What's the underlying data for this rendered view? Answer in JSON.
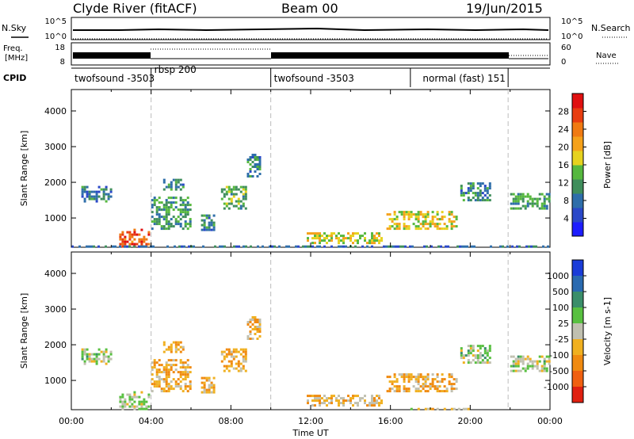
{
  "header": {
    "station": "Clyde River (fitACF)",
    "beam": "Beam 00",
    "date": "19/Jun/2015"
  },
  "top_panels": {
    "nsky_label": "N.Sky",
    "nsky_ticks": [
      "10^5",
      "10^0"
    ],
    "nsearch_label": "N.Search",
    "nsearch_ticks": [
      "10^5",
      "10^0"
    ],
    "freq_label_1": "Freq.",
    "freq_label_2": "[MHz]",
    "freq_ticks": [
      "18",
      "8"
    ],
    "nave_label": "Nave",
    "nave_ticks": [
      "60",
      "0"
    ],
    "cpid_label": "CPID",
    "cpid_segments": [
      {
        "label": "twofsound -3503",
        "start_hour": 0,
        "end_hour": 4.0
      },
      {
        "label": "rbsp 200",
        "start_hour": 4.0,
        "end_hour": 10.0
      },
      {
        "label": "twofsound -3503",
        "start_hour": 10.0,
        "end_hour": 17.0
      },
      {
        "label": "normal (fast) 151",
        "start_hour": 17.0,
        "end_hour": 21.9
      }
    ]
  },
  "chart_data": [
    {
      "type": "heatmap",
      "title": "Power",
      "ylabel": "Slant Range [km]",
      "xlabel": "",
      "ylim": [
        180,
        4600
      ],
      "xlim": [
        0,
        24
      ],
      "yticks": [
        "1000",
        "2000",
        "3000",
        "4000"
      ],
      "colorbar_label": "Power [dB]",
      "colorbar_ticks": [
        "4",
        "8",
        "12",
        "16",
        "20",
        "24",
        "28"
      ],
      "colorbar_colors": [
        "#1d1dff",
        "#2a48c8",
        "#2e6eaa",
        "#3f8e5c",
        "#56b83e",
        "#e6d21e",
        "#f5a11a",
        "#f07a12",
        "#e83d10",
        "#e01010"
      ],
      "blobs": [
        {
          "x0": 2.4,
          "x1": 3.9,
          "y0": 200,
          "y1": 700,
          "v": 0.85
        },
        {
          "x0": 4.0,
          "x1": 6.0,
          "y0": 700,
          "y1": 1600,
          "v": 0.35
        },
        {
          "x0": 4.6,
          "x1": 5.6,
          "y0": 1800,
          "y1": 2100,
          "v": 0.3
        },
        {
          "x0": 6.5,
          "x1": 7.2,
          "y0": 700,
          "y1": 1100,
          "v": 0.3
        },
        {
          "x0": 7.5,
          "x1": 8.8,
          "y0": 1300,
          "y1": 1900,
          "v": 0.4
        },
        {
          "x0": 8.8,
          "x1": 9.4,
          "y0": 2200,
          "y1": 2800,
          "v": 0.3
        },
        {
          "x0": 11.8,
          "x1": 15.5,
          "y0": 300,
          "y1": 600,
          "v": 0.55
        },
        {
          "x0": 15.8,
          "x1": 19.3,
          "y0": 700,
          "y1": 1200,
          "v": 0.55
        },
        {
          "x0": 22.0,
          "x1": 24.0,
          "y0": 1300,
          "y1": 1700,
          "v": 0.35
        },
        {
          "x0": 19.5,
          "x1": 21.0,
          "y0": 1500,
          "y1": 2000,
          "v": 0.3
        },
        {
          "x0": 0.5,
          "x1": 2.0,
          "y0": 1500,
          "y1": 1900,
          "v": 0.25
        },
        {
          "x0": 0.0,
          "x1": 24.0,
          "y0": 180,
          "y1": 230,
          "v": 0.2
        }
      ]
    },
    {
      "type": "heatmap",
      "title": "Velocity",
      "ylabel": "Slant Range [km]",
      "xlabel": "Time UT",
      "ylim": [
        180,
        4600
      ],
      "xlim": [
        0,
        24
      ],
      "yticks": [
        "1000",
        "2000",
        "3000",
        "4000"
      ],
      "xticks": [
        "00:00",
        "04:00",
        "08:00",
        "12:00",
        "16:00",
        "20:00",
        "00:00"
      ],
      "colorbar_label": "Velocity [m s-1]",
      "colorbar_ticks": [
        "1000",
        "500",
        "100",
        "25",
        "-25",
        "-100",
        "-500",
        "-1000"
      ],
      "colorbar_colors": [
        "#1a3cd8",
        "#2a6ab0",
        "#3a8e6a",
        "#58c040",
        "#c0c0b0",
        "#f0b020",
        "#f08a10",
        "#f06010",
        "#e02010"
      ],
      "blobs": [
        {
          "x0": 2.4,
          "x1": 3.9,
          "y0": 200,
          "y1": 700,
          "v": 0.45
        },
        {
          "x0": 4.0,
          "x1": 6.0,
          "y0": 700,
          "y1": 1600,
          "v": 0.65
        },
        {
          "x0": 4.6,
          "x1": 5.6,
          "y0": 1800,
          "y1": 2100,
          "v": 0.65
        },
        {
          "x0": 6.5,
          "x1": 7.2,
          "y0": 700,
          "y1": 1100,
          "v": 0.65
        },
        {
          "x0": 7.5,
          "x1": 8.8,
          "y0": 1300,
          "y1": 1900,
          "v": 0.65
        },
        {
          "x0": 8.8,
          "x1": 9.4,
          "y0": 2200,
          "y1": 2800,
          "v": 0.65
        },
        {
          "x0": 11.8,
          "x1": 15.5,
          "y0": 300,
          "y1": 600,
          "v": 0.6
        },
        {
          "x0": 15.8,
          "x1": 19.3,
          "y0": 700,
          "y1": 1200,
          "v": 0.65
        },
        {
          "x0": 22.0,
          "x1": 24.0,
          "y0": 1300,
          "y1": 1700,
          "v": 0.45
        },
        {
          "x0": 19.5,
          "x1": 21.0,
          "y0": 1500,
          "y1": 2000,
          "v": 0.45
        },
        {
          "x0": 0.5,
          "x1": 2.0,
          "y0": 1500,
          "y1": 1900,
          "v": 0.45
        },
        {
          "x0": 17.0,
          "x1": 20.0,
          "y0": 180,
          "y1": 230,
          "v": 0.55
        }
      ]
    }
  ],
  "vertical_markers_hour": [
    4.0,
    10.0,
    21.9
  ]
}
